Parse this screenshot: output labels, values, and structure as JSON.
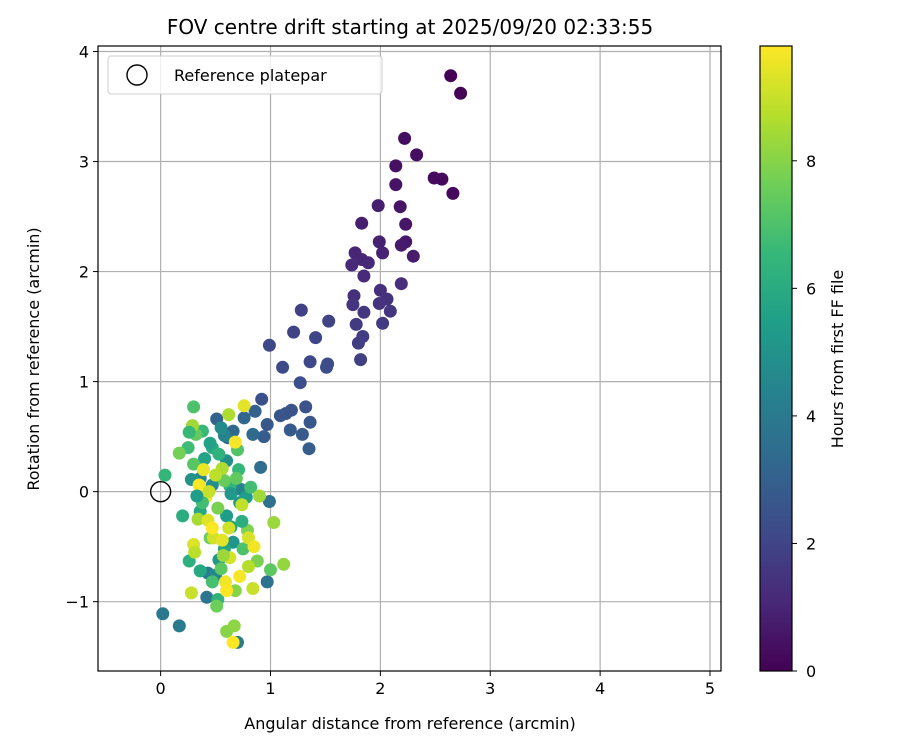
{
  "chart_data": {
    "type": "scatter",
    "title": "FOV centre drift starting at 2025/09/20 02:33:55",
    "xlabel": "Angular distance from reference (arcmin)",
    "ylabel": "Rotation from reference (arcmin)",
    "xlim": [
      -0.57,
      5.1
    ],
    "ylim": [
      -1.63,
      4.05
    ],
    "xticks": [
      0,
      1,
      2,
      3,
      4,
      5
    ],
    "yticks": [
      -1,
      0,
      1,
      2,
      3,
      4
    ],
    "tick_labels": {
      "x": [
        "0",
        "1",
        "2",
        "3",
        "4",
        "5"
      ],
      "y": [
        "−1",
        "0",
        "1",
        "2",
        "3",
        "4"
      ]
    },
    "grid": true,
    "legend": {
      "location": "top-left",
      "entries": [
        {
          "label": "Reference platepar",
          "marker": "open-circle"
        }
      ]
    },
    "reference_point": {
      "x": 0,
      "y": 0,
      "label": "Reference platepar"
    },
    "colorbar": {
      "label": "Hours from first FF file",
      "range": [
        0,
        9.8
      ],
      "ticks": [
        0,
        2,
        4,
        6,
        8
      ],
      "tick_labels": [
        "0",
        "2",
        "4",
        "6",
        "8"
      ],
      "colormap": [
        "#440154",
        "#482878",
        "#3e4a89",
        "#31688e",
        "#26828e",
        "#1f9e89",
        "#35b779",
        "#6ece58",
        "#b5de2b",
        "#fde725"
      ]
    },
    "series": [
      {
        "name": "FF file fits",
        "columns": [
          "x",
          "y",
          "hours"
        ],
        "points": [
          [
            2.64,
            3.78,
            0.05
          ],
          [
            2.73,
            3.62,
            0.1
          ],
          [
            2.66,
            2.71,
            0.2
          ],
          [
            2.56,
            2.84,
            0.25
          ],
          [
            2.49,
            2.85,
            0.3
          ],
          [
            2.33,
            3.06,
            0.35
          ],
          [
            2.22,
            3.21,
            0.4
          ],
          [
            2.14,
            2.96,
            0.45
          ],
          [
            2.14,
            2.79,
            0.5
          ],
          [
            2.18,
            2.59,
            0.55
          ],
          [
            2.23,
            2.43,
            0.6
          ],
          [
            2.23,
            2.27,
            0.65
          ],
          [
            2.19,
            2.24,
            0.7
          ],
          [
            2.3,
            2.14,
            0.75
          ],
          [
            1.98,
            2.6,
            0.8
          ],
          [
            1.83,
            2.44,
            0.85
          ],
          [
            1.99,
            2.27,
            0.9
          ],
          [
            2.02,
            2.17,
            0.95
          ],
          [
            1.77,
            2.17,
            1.0
          ],
          [
            1.83,
            2.11,
            1.05
          ],
          [
            1.89,
            2.08,
            1.1
          ],
          [
            1.74,
            2.06,
            1.15
          ],
          [
            1.85,
            1.96,
            1.2
          ],
          [
            2.19,
            1.89,
            1.25
          ],
          [
            2.0,
            1.83,
            1.3
          ],
          [
            1.76,
            1.78,
            1.35
          ],
          [
            2.06,
            1.75,
            1.4
          ],
          [
            1.99,
            1.71,
            1.45
          ],
          [
            1.75,
            1.7,
            1.5
          ],
          [
            2.09,
            1.64,
            1.55
          ],
          [
            1.85,
            1.63,
            1.6
          ],
          [
            2.02,
            1.53,
            1.65
          ],
          [
            1.78,
            1.52,
            1.7
          ],
          [
            1.84,
            1.41,
            1.75
          ],
          [
            1.8,
            1.35,
            1.8
          ],
          [
            1.82,
            1.2,
            1.85
          ],
          [
            1.28,
            1.65,
            1.9
          ],
          [
            1.53,
            1.55,
            1.95
          ],
          [
            1.21,
            1.45,
            2.0
          ],
          [
            1.41,
            1.4,
            2.05
          ],
          [
            0.99,
            1.33,
            2.1
          ],
          [
            1.36,
            1.18,
            2.15
          ],
          [
            1.52,
            1.16,
            2.2
          ],
          [
            1.11,
            1.13,
            2.25
          ],
          [
            1.51,
            1.13,
            2.3
          ],
          [
            1.27,
            0.99,
            2.35
          ],
          [
            0.92,
            0.84,
            2.4
          ],
          [
            1.32,
            0.77,
            2.45
          ],
          [
            1.19,
            0.74,
            2.5
          ],
          [
            1.14,
            0.71,
            2.55
          ],
          [
            1.09,
            0.69,
            2.6
          ],
          [
            1.36,
            0.63,
            2.65
          ],
          [
            0.97,
            0.61,
            2.7
          ],
          [
            1.18,
            0.56,
            2.75
          ],
          [
            1.29,
            0.52,
            2.8
          ],
          [
            0.94,
            0.5,
            2.85
          ],
          [
            1.35,
            0.39,
            2.9
          ],
          [
            0.86,
            0.73,
            3.0
          ],
          [
            0.51,
            0.66,
            3.1
          ],
          [
            0.76,
            0.67,
            3.2
          ],
          [
            0.66,
            0.55,
            3.3
          ],
          [
            0.61,
            0.49,
            3.35
          ],
          [
            0.84,
            0.52,
            3.4
          ],
          [
            0.91,
            0.22,
            3.5
          ],
          [
            0.99,
            -0.09,
            3.6
          ],
          [
            0.97,
            -0.82,
            3.7
          ],
          [
            0.42,
            -0.96,
            3.8
          ],
          [
            0.02,
            -1.11,
            3.9
          ],
          [
            0.17,
            -1.22,
            4.0
          ],
          [
            0.7,
            -1.37,
            4.1
          ],
          [
            0.43,
            -0.74,
            4.2
          ],
          [
            0.73,
            0.02,
            4.3
          ],
          [
            0.58,
            0.51,
            4.4
          ],
          [
            0.5,
            -0.76,
            4.5
          ],
          [
            0.36,
            0.12,
            4.6
          ],
          [
            0.55,
            0.58,
            4.7
          ],
          [
            0.47,
            0.06,
            4.8
          ],
          [
            0.6,
            0.28,
            4.9
          ],
          [
            0.28,
            0.11,
            5.0
          ],
          [
            0.66,
            -0.46,
            5.1
          ],
          [
            0.53,
            -0.62,
            5.2
          ],
          [
            0.72,
            -0.1,
            5.3
          ],
          [
            0.6,
            -0.22,
            5.4
          ],
          [
            0.78,
            -0.05,
            5.5
          ],
          [
            0.4,
            0.3,
            5.6
          ],
          [
            0.64,
            -0.32,
            5.7
          ],
          [
            0.58,
            -0.52,
            5.8
          ],
          [
            0.36,
            -0.18,
            5.9
          ],
          [
            0.47,
            0.4,
            6.0
          ],
          [
            0.2,
            -0.22,
            6.1
          ],
          [
            0.26,
            -0.63,
            6.2
          ],
          [
            0.52,
            -0.98,
            6.3
          ],
          [
            0.63,
            0.05,
            6.4
          ],
          [
            0.71,
            0.2,
            6.5
          ],
          [
            0.38,
            0.55,
            6.6
          ],
          [
            0.25,
            0.4,
            6.7
          ],
          [
            0.82,
            0.04,
            6.8
          ],
          [
            0.47,
            -0.82,
            6.9
          ],
          [
            0.75,
            -0.52,
            7.0
          ],
          [
            0.7,
            0.38,
            7.1
          ],
          [
            0.3,
            0.25,
            7.2
          ],
          [
            0.55,
            -0.7,
            7.3
          ],
          [
            0.32,
            0.52,
            7.4
          ],
          [
            0.58,
            0.1,
            7.5
          ],
          [
            0.45,
            -0.42,
            7.6
          ],
          [
            0.17,
            0.35,
            7.7
          ],
          [
            0.88,
            -0.63,
            7.8
          ],
          [
            0.79,
            -0.35,
            7.9
          ],
          [
            0.6,
            -1.27,
            8.0
          ],
          [
            0.67,
            -1.22,
            8.1
          ],
          [
            1.12,
            -0.66,
            8.2
          ],
          [
            1.03,
            -0.28,
            8.3
          ],
          [
            0.9,
            -0.04,
            8.4
          ],
          [
            0.34,
            -0.25,
            8.5
          ],
          [
            0.56,
            0.21,
            8.6
          ],
          [
            0.8,
            -0.68,
            8.7
          ],
          [
            0.5,
            0.15,
            8.8
          ],
          [
            0.74,
            -0.12,
            8.9
          ],
          [
            0.84,
            -0.88,
            9.0
          ],
          [
            0.48,
            -0.42,
            9.1
          ],
          [
            0.63,
            -0.6,
            9.2
          ],
          [
            0.3,
            -0.48,
            9.3
          ],
          [
            0.76,
            0.78,
            9.4
          ],
          [
            0.41,
            -0.05,
            9.5
          ],
          [
            0.59,
            -0.82,
            9.6
          ],
          [
            0.68,
            0.45,
            9.7
          ],
          [
            0.35,
            0.06,
            9.75
          ],
          [
            0.66,
            -1.37,
            9.8
          ],
          [
            0.62,
            -0.33,
            9.1
          ],
          [
            0.43,
            -0.26,
            9.3
          ],
          [
            0.39,
            0.2,
            9.5
          ],
          [
            0.8,
            -0.42,
            9.2
          ],
          [
            0.56,
            -0.44,
            9.4
          ],
          [
            0.29,
            0.6,
            8.4
          ],
          [
            0.3,
            0.77,
            7.0
          ],
          [
            0.04,
            0.15,
            6.5
          ],
          [
            0.62,
            0.7,
            8.6
          ],
          [
            1.0,
            -0.71,
            7.3
          ],
          [
            0.51,
            -1.04,
            7.6
          ],
          [
            0.68,
            -0.9,
            8.0
          ],
          [
            0.53,
            0.34,
            6.3
          ],
          [
            0.45,
            0.44,
            5.6
          ],
          [
            0.38,
            -0.1,
            6.8
          ],
          [
            0.64,
            -0.02,
            5.2
          ],
          [
            0.36,
            -0.72,
            5.9
          ],
          [
            0.74,
            -0.27,
            6.1
          ],
          [
            0.52,
            -0.15,
            7.8
          ],
          [
            0.57,
            -0.58,
            8.3
          ],
          [
            0.69,
            0.12,
            7.4
          ],
          [
            0.44,
            0.0,
            9.0
          ],
          [
            0.31,
            -0.55,
            8.8
          ],
          [
            0.85,
            -0.5,
            9.6
          ],
          [
            0.47,
            -0.33,
            9.8
          ],
          [
            0.72,
            -0.77,
            9.7
          ],
          [
            0.6,
            -0.9,
            9.9
          ],
          [
            0.28,
            -0.92,
            9.0
          ],
          [
            0.33,
            -0.04,
            5.4
          ],
          [
            0.26,
            0.54,
            6.6
          ]
        ]
      }
    ]
  }
}
